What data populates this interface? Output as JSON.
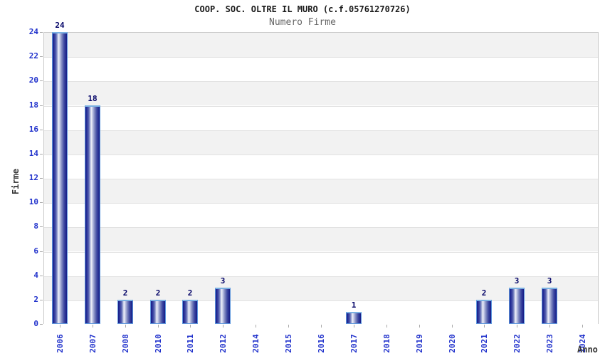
{
  "header": {
    "title": "COOP. SOC. OLTRE IL MURO (c.f.05761270726)",
    "subtitle": "Numero Firme"
  },
  "chart_data": {
    "type": "bar",
    "title": "COOP. SOC. OLTRE IL MURO (c.f.05761270726)",
    "subtitle": "Numero Firme",
    "xlabel": "Anno",
    "ylabel": "Firme",
    "categories": [
      "2006",
      "2007",
      "2008",
      "2010",
      "2011",
      "2012",
      "2014",
      "2015",
      "2016",
      "2017",
      "2018",
      "2019",
      "2020",
      "2021",
      "2022",
      "2023",
      "2024"
    ],
    "values": [
      24,
      18,
      2,
      2,
      2,
      3,
      0,
      0,
      0,
      1,
      0,
      0,
      0,
      2,
      3,
      3,
      0
    ],
    "ylim": [
      0,
      24
    ],
    "ytick_step": 2,
    "yticks": [
      0,
      2,
      4,
      6,
      8,
      10,
      12,
      14,
      16,
      18,
      20,
      22,
      24
    ],
    "grid": "horizontal-bands-alternating",
    "legend": "none",
    "colors": {
      "tick_label": "#2233cc",
      "value_label": "#000066",
      "bar_edge_dark": "#141b87",
      "bar_center_light": "#eff1f9",
      "bar_outline": "#5e97dd",
      "bar_cap": "#7ab0e2",
      "band_gray": "#f2f2f2",
      "band_white": "#ffffff",
      "grid_line": "#e2e2e2",
      "plot_border": "#c9c9c9",
      "title_color": "#1a1a1a",
      "subtitle_color": "#666666",
      "axis_title_color": "#333333"
    }
  }
}
